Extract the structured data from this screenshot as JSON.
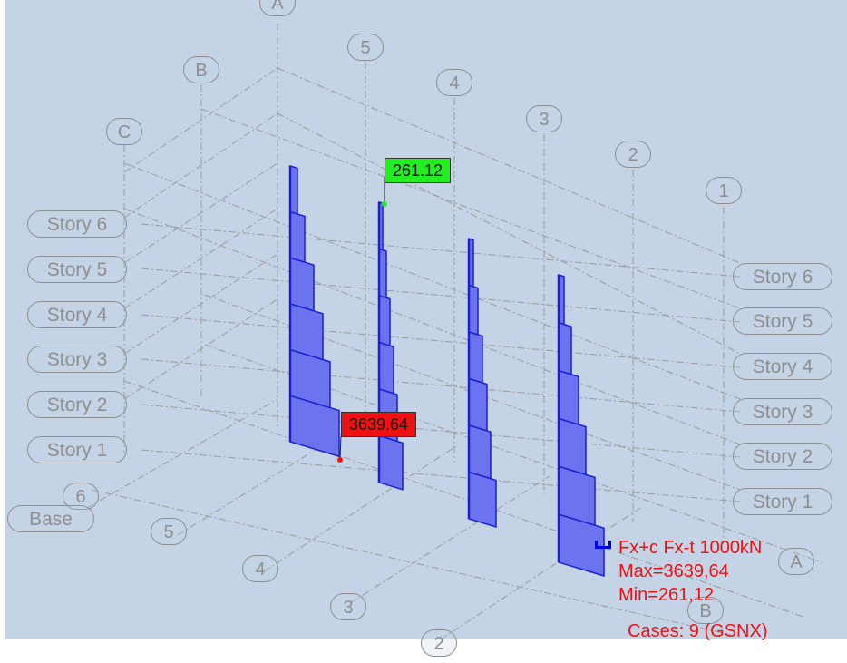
{
  "grid_letters": {
    "back_A": "A",
    "back_B": "B",
    "back_C": "C",
    "front_A": "A",
    "front_B": "B"
  },
  "grid_numbers": {
    "back_5": "5",
    "back_4": "4",
    "back_3": "3",
    "back_2": "2",
    "back_1": "1",
    "front_6": "6",
    "front_5": "5",
    "front_4": "4",
    "front_3": "3",
    "front_2": "2"
  },
  "stories_left": [
    "Story 6",
    "Story 5",
    "Story 4",
    "Story 3",
    "Story 2",
    "Story 1",
    "Base"
  ],
  "stories_right": [
    "Story 6",
    "Story 5",
    "Story 4",
    "Story 3",
    "Story 2",
    "Story 1"
  ],
  "diagram": {
    "min_tag": "261.12",
    "max_tag": "3639.64",
    "fill_color": "#6b74ee",
    "edge_color": "#1a1fd6",
    "min_color": "#22ee22",
    "max_color": "#ee1111"
  },
  "legend": {
    "title": "Fx+c Fx-t  1000kN",
    "max": "Max=3639,64",
    "min": "Min=261,12",
    "cases": "Cases: 9 (GSNX)"
  }
}
